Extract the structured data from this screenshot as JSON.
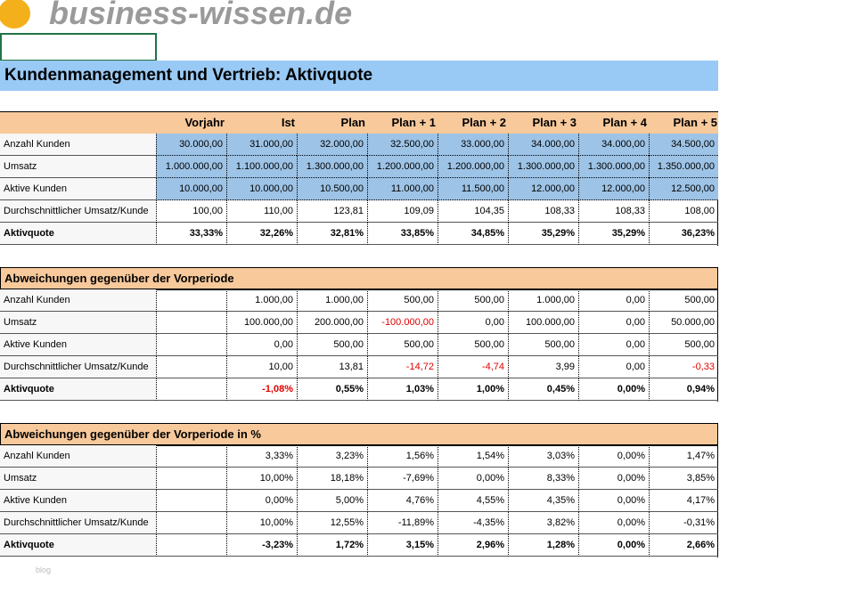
{
  "header": {
    "logo_text": "business-wissen.de"
  },
  "title": "Kundenmanagement und Vertrieb: Aktivquote",
  "table1": {
    "headers": [
      "Vorjahr",
      "Ist",
      "Plan",
      "Plan + 1",
      "Plan + 2",
      "Plan + 3",
      "Plan + 4",
      "Plan + 5"
    ],
    "rows": [
      {
        "label": "Anzahl Kunden",
        "cells": [
          "30.000,00",
          "31.000,00",
          "32.000,00",
          "32.500,00",
          "33.000,00",
          "34.000,00",
          "34.000,00",
          "34.500,00"
        ],
        "highlight": true
      },
      {
        "label": "Umsatz",
        "cells": [
          "1.000.000,00",
          "1.100.000,00",
          "1.300.000,00",
          "1.200.000,00",
          "1.200.000,00",
          "1.300.000,00",
          "1.300.000,00",
          "1.350.000,00"
        ],
        "highlight": true
      },
      {
        "label": "Aktive Kunden",
        "cells": [
          "10.000,00",
          "10.000,00",
          "10.500,00",
          "11.000,00",
          "11.500,00",
          "12.000,00",
          "12.000,00",
          "12.500,00"
        ],
        "highlight": true
      },
      {
        "label": "Durchschnittlicher Umsatz/Kunde",
        "cells": [
          "100,00",
          "110,00",
          "123,81",
          "109,09",
          "104,35",
          "108,33",
          "108,33",
          "108,00"
        ]
      },
      {
        "label": "Aktivquote",
        "cells": [
          "33,33%",
          "32,26%",
          "32,81%",
          "33,85%",
          "34,85%",
          "35,29%",
          "35,29%",
          "36,23%"
        ],
        "bold": true
      }
    ]
  },
  "table2": {
    "title": "Abweichungen gegenüber der Vorperiode",
    "negatives_red": true,
    "rows": [
      {
        "label": "Anzahl Kunden",
        "cells": [
          "1.000,00",
          "1.000,00",
          "500,00",
          "500,00",
          "1.000,00",
          "0,00",
          "500,00"
        ]
      },
      {
        "label": "Umsatz",
        "cells": [
          "100.000,00",
          "200.000,00",
          "-100.000,00",
          "0,00",
          "100.000,00",
          "0,00",
          "50.000,00"
        ]
      },
      {
        "label": "Aktive Kunden",
        "cells": [
          "0,00",
          "500,00",
          "500,00",
          "500,00",
          "500,00",
          "0,00",
          "500,00"
        ]
      },
      {
        "label": "Durchschnittlicher Umsatz/Kunde",
        "cells": [
          "10,00",
          "13,81",
          "-14,72",
          "-4,74",
          "3,99",
          "0,00",
          "-0,33"
        ]
      },
      {
        "label": "Aktivquote",
        "cells": [
          "-1,08%",
          "0,55%",
          "1,03%",
          "1,00%",
          "0,45%",
          "0,00%",
          "0,94%"
        ],
        "bold": true
      }
    ]
  },
  "table3": {
    "title": "Abweichungen gegenüber der Vorperiode in %",
    "negatives_red": false,
    "rows": [
      {
        "label": "Anzahl Kunden",
        "cells": [
          "3,33%",
          "3,23%",
          "1,56%",
          "1,54%",
          "3,03%",
          "0,00%",
          "1,47%"
        ]
      },
      {
        "label": "Umsatz",
        "cells": [
          "10,00%",
          "18,18%",
          "-7,69%",
          "0,00%",
          "8,33%",
          "0,00%",
          "3,85%"
        ]
      },
      {
        "label": "Aktive Kunden",
        "cells": [
          "0,00%",
          "5,00%",
          "4,76%",
          "4,55%",
          "4,35%",
          "0,00%",
          "4,17%"
        ]
      },
      {
        "label": "Durchschnittlicher Umsatz/Kunde",
        "cells": [
          "10,00%",
          "12,55%",
          "-11,89%",
          "-4,35%",
          "3,82%",
          "0,00%",
          "-0,31%"
        ]
      },
      {
        "label": "Aktivquote",
        "cells": [
          "-3,23%",
          "1,72%",
          "3,15%",
          "2,96%",
          "1,28%",
          "0,00%",
          "2,66%"
        ],
        "bold": true
      }
    ]
  },
  "footer": "blog"
}
